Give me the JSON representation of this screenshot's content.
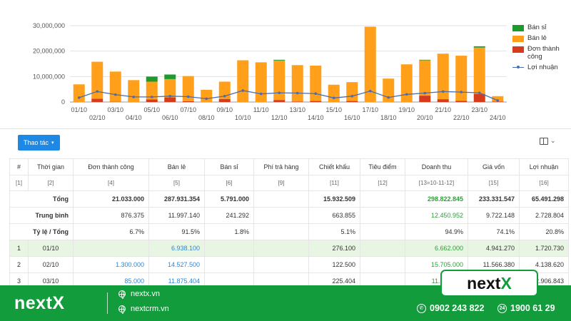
{
  "chart_data": {
    "type": "bar",
    "stacked": true,
    "categories": [
      "01/10",
      "02/10",
      "03/10",
      "04/10",
      "05/10",
      "06/10",
      "07/10",
      "08/10",
      "09/10",
      "10/10",
      "11/10",
      "12/10",
      "13/10",
      "14/10",
      "15/10",
      "16/10",
      "17/10",
      "18/10",
      "19/10",
      "20/10",
      "21/10",
      "22/10",
      "23/10",
      "24/10"
    ],
    "y_ticks": [
      "0",
      "10,000,000",
      "20,000,000",
      "30,000,000"
    ],
    "ylim": [
      0,
      32000000
    ],
    "grid": true,
    "legend_position": "right",
    "series": [
      {
        "name": "Bán sỉ",
        "color": "#1e9a2c",
        "values": [
          0,
          0,
          0,
          0,
          2000000,
          1800000,
          0,
          0,
          0,
          0,
          0,
          300000,
          0,
          0,
          0,
          0,
          0,
          0,
          0,
          200000,
          0,
          0,
          500000,
          0
        ]
      },
      {
        "name": "Bán lẻ",
        "color": "#ff9f1a",
        "values": [
          6938100,
          14527500,
          11875404,
          8600000,
          7000000,
          7200000,
          9900000,
          4800000,
          6800000,
          16400000,
          15600000,
          15500000,
          14300000,
          13900000,
          6800000,
          7400000,
          29600000,
          9200000,
          14800000,
          13900000,
          17900000,
          17700000,
          18200000,
          2100000
        ]
      },
      {
        "name": "Đơn thành công",
        "color": "#d63c1c",
        "values": [
          0,
          1300000,
          85000,
          0,
          1000000,
          1800000,
          300000,
          0,
          1200000,
          0,
          0,
          800000,
          200000,
          400000,
          0,
          400000,
          0,
          0,
          0,
          2500000,
          1100000,
          500000,
          3200000,
          200000
        ]
      },
      {
        "name": "Lợi nhuận",
        "color": "#4a6cb3",
        "type": "line",
        "values": [
          1720730,
          4138620,
          2906843,
          2000000,
          2000000,
          2300000,
          2100000,
          1300000,
          2300000,
          4500000,
          3200000,
          3600000,
          3500000,
          3300000,
          1600000,
          2300000,
          4300000,
          1800000,
          3000000,
          3500000,
          4100000,
          3900000,
          3600000,
          600000
        ]
      }
    ]
  },
  "toolbar": {
    "action_label": "Thao tác",
    "action_caret": "▾",
    "columns_caret": "⌄"
  },
  "table": {
    "headers": [
      "#",
      "Thời gian",
      "Đơn thành công",
      "Bán lẻ",
      "Bán sỉ",
      "Phí trả hàng",
      "Chiết khấu",
      "Tiêu điểm",
      "Doanh thu",
      "Giá vốn",
      "Lợi nhuận"
    ],
    "indexes": [
      "[1]",
      "[2]",
      "[4]",
      "[5]",
      "[6]",
      "[9]",
      "[11]",
      "[12]",
      "[13=10-11-12]",
      "[15]",
      "[16]"
    ],
    "summary": [
      {
        "label": "Tổng",
        "cells": [
          "21.033.000",
          "287.931.354",
          "5.791.000",
          "",
          "15.932.509",
          "",
          "298.822.845",
          "233.331.547",
          "65.491.298"
        ]
      },
      {
        "label": "Trung bình",
        "cells": [
          "876.375",
          "11.997.140",
          "241.292",
          "",
          "663.855",
          "",
          "12.450.952",
          "9.722.148",
          "2.728.804"
        ]
      },
      {
        "label": "Tỷ lệ / Tổng",
        "cells": [
          "6.7%",
          "91.5%",
          "1.8%",
          "",
          "5.1%",
          "",
          "94.9%",
          "74.1%",
          "20.8%"
        ]
      }
    ],
    "rows": [
      {
        "idx": "1",
        "date": "01/10",
        "cells": [
          "",
          "6.938.100",
          "",
          "",
          "276.100",
          "",
          "6.662.000",
          "4.941.270",
          "1.720.730"
        ]
      },
      {
        "idx": "2",
        "date": "02/10",
        "cells": [
          "1.300.000",
          "14.527.500",
          "",
          "",
          "122.500",
          "",
          "15.705.000",
          "11.566.380",
          "4.138.620"
        ]
      },
      {
        "idx": "3",
        "date": "03/10",
        "cells": [
          "85.000",
          "11.875.404",
          "",
          "",
          "225.404",
          "",
          "11.735.000",
          "",
          "2.906.843"
        ]
      }
    ]
  },
  "footer": {
    "logo": "nextX",
    "site1": "nextx.vn",
    "site2": "nextcrm.vn",
    "phone1": "0902 243 822",
    "phone2": "1900 61 29",
    "badge_main": "next",
    "badge_x": "X",
    "hotline_icon": "24"
  },
  "colors": {
    "accent_green": "#129c3b",
    "button_blue": "#1e88e5",
    "highlight_row": "#e8f5e2"
  }
}
